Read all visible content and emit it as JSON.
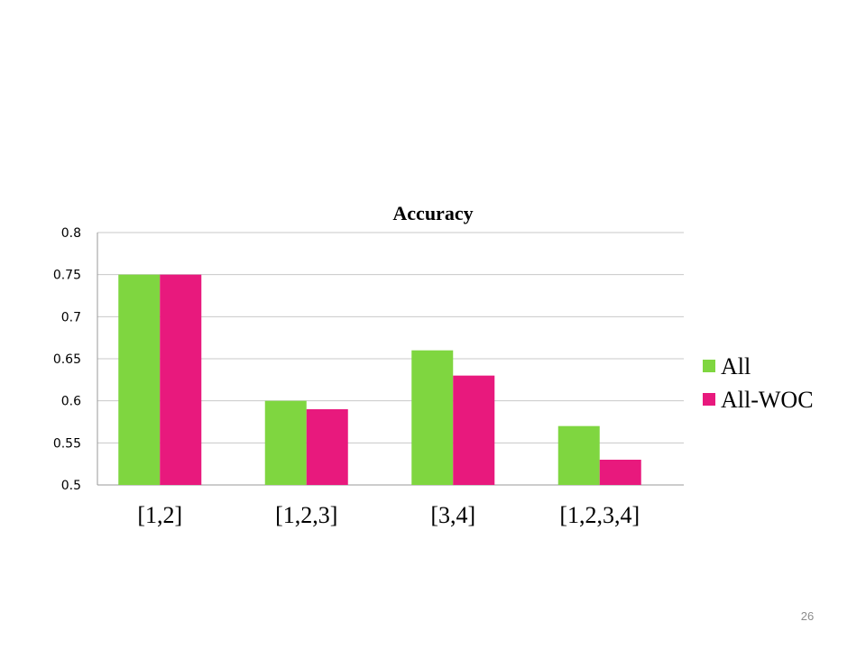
{
  "slide": {
    "page_number": "26"
  },
  "chart_data": {
    "type": "bar",
    "title": "Accuracy",
    "xlabel": "",
    "ylabel": "",
    "categories": [
      "[1,2]",
      "[1,2,3]",
      "[3,4]",
      "[1,2,3,4]"
    ],
    "series": [
      {
        "name": "All",
        "values": [
          0.75,
          0.6,
          0.66,
          0.57
        ],
        "color": "#7fd640"
      },
      {
        "name": "All-WOC",
        "values": [
          0.75,
          0.59,
          0.63,
          0.53
        ],
        "color": "#e8197d"
      }
    ],
    "ylim": [
      0.5,
      0.8
    ],
    "yticks": [
      "0.5",
      "0.55",
      "0.6",
      "0.65",
      "0.7",
      "0.75",
      "0.8"
    ],
    "grid": true,
    "legend_position": "right"
  }
}
